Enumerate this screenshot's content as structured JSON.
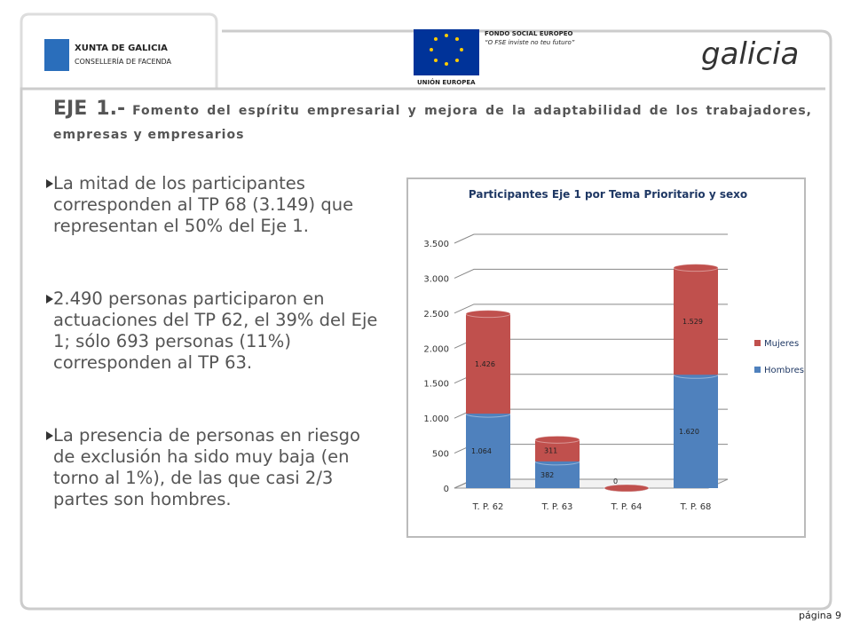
{
  "header": {
    "xunta": "XUNTA DE GALICIA",
    "conselleria": "CONSELLERÍA DE FACENDA",
    "fse": "FONDO SOCIAL EUROPEO",
    "fse_motto": "“O FSE inviste no teu futuro”",
    "ue": "UNIÓN EUROPEA",
    "galicia": "galicia"
  },
  "title": {
    "lead": "EJE 1.-",
    "rest": "Fomento del espíritu empresarial y mejora de la adaptabilidad de los trabajadores, empresas y empresarios"
  },
  "bullets": [
    "La mitad de los participantes corresponden al TP 68 (3.149) que representan el 50% del Eje 1.",
    "2.490 personas participaron en actuaciones del TP 62, el 39% del Eje 1; sólo 693 personas (11%) corresponden al TP 63.",
    "La presencia de personas en riesgo de exclusión ha sido muy baja (en torno al 1%), de las que casi 2/3 partes son hombres."
  ],
  "chart_data": {
    "type": "bar",
    "stacked": true,
    "title": "Participantes Eje 1 por Tema Prioritario y sexo",
    "categories": [
      "T. P. 62",
      "T. P. 63",
      "T. P. 64",
      "T. P. 68"
    ],
    "series": [
      {
        "name": "Hombres",
        "color": "#4f81bd",
        "values": [
          1064,
          382,
          0,
          1620
        ],
        "value_labels": [
          "1.064",
          "382",
          "0",
          "1.620"
        ]
      },
      {
        "name": "Mujeres",
        "color": "#c0504d",
        "values": [
          1426,
          311,
          0,
          1529
        ],
        "value_labels": [
          "1.426",
          "311",
          "0",
          "1.529"
        ]
      }
    ],
    "ylim": [
      0,
      3500
    ],
    "yticks": [
      0,
      500,
      {
        "value": 1000,
        "label": "1.000"
      },
      {
        "value": 1500,
        "label": "1.500"
      },
      {
        "value": 2000,
        "label": "2.000"
      },
      {
        "value": 2500,
        "label": "2.500"
      },
      {
        "value": 3000,
        "label": "3.000"
      },
      {
        "value": 3500,
        "label": "3.500"
      }
    ],
    "grid": true,
    "legend": "right"
  },
  "footer": {
    "page": "página 9"
  }
}
